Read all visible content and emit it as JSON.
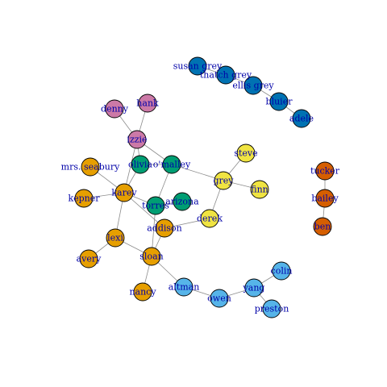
{
  "graph": {
    "groups": {
      "pink": "#cc79a7",
      "green": "#009e73",
      "orange": "#e69f00",
      "yellow": "#f0e442",
      "skyblue": "#56b4e9",
      "blue": "#0072b2",
      "vermillion": "#d55e00"
    },
    "nodes": [
      {
        "id": "susan grey",
        "group": "blue"
      },
      {
        "id": "thatch grey",
        "group": "blue"
      },
      {
        "id": "ellis grey",
        "group": "blue"
      },
      {
        "id": "bluier",
        "group": "blue"
      },
      {
        "id": "adele",
        "group": "blue"
      },
      {
        "id": "denny",
        "group": "pink"
      },
      {
        "id": "hank",
        "group": "pink"
      },
      {
        "id": "izzie",
        "group": "pink"
      },
      {
        "id": "olivia",
        "group": "green"
      },
      {
        "id": "o'malley",
        "group": "green"
      },
      {
        "id": "torres",
        "group": "green"
      },
      {
        "id": "arizona",
        "group": "green"
      },
      {
        "id": "mrs. seabury",
        "group": "orange"
      },
      {
        "id": "karev",
        "group": "orange"
      },
      {
        "id": "kepner",
        "group": "orange"
      },
      {
        "id": "addison",
        "group": "orange"
      },
      {
        "id": "lexi",
        "group": "orange"
      },
      {
        "id": "avery",
        "group": "orange"
      },
      {
        "id": "sloan",
        "group": "orange"
      },
      {
        "id": "nancy",
        "group": "orange"
      },
      {
        "id": "steve",
        "group": "yellow"
      },
      {
        "id": "grey",
        "group": "yellow"
      },
      {
        "id": "finn",
        "group": "yellow"
      },
      {
        "id": "derek",
        "group": "yellow"
      },
      {
        "id": "altman",
        "group": "skyblue"
      },
      {
        "id": "owen",
        "group": "skyblue"
      },
      {
        "id": "yang",
        "group": "skyblue"
      },
      {
        "id": "colin",
        "group": "skyblue"
      },
      {
        "id": "preston",
        "group": "skyblue"
      },
      {
        "id": "tucker",
        "group": "vermillion"
      },
      {
        "id": "bailey",
        "group": "vermillion"
      },
      {
        "id": "ben",
        "group": "vermillion"
      }
    ],
    "edges": [
      [
        "susan grey",
        "thatch grey"
      ],
      [
        "thatch grey",
        "ellis grey"
      ],
      [
        "ellis grey",
        "bluier"
      ],
      [
        "bluier",
        "adele"
      ],
      [
        "denny",
        "izzie"
      ],
      [
        "hank",
        "izzie"
      ],
      [
        "izzie",
        "olivia"
      ],
      [
        "izzie",
        "o'malley"
      ],
      [
        "izzie",
        "karev"
      ],
      [
        "olivia",
        "karev"
      ],
      [
        "olivia",
        "o'malley"
      ],
      [
        "o'malley",
        "torres"
      ],
      [
        "o'malley",
        "grey"
      ],
      [
        "mrs. seabury",
        "karev"
      ],
      [
        "kepner",
        "karev"
      ],
      [
        "karev",
        "torres"
      ],
      [
        "karev",
        "lexi"
      ],
      [
        "karev",
        "addison"
      ],
      [
        "torres",
        "arizona"
      ],
      [
        "torres",
        "sloan"
      ],
      [
        "addison",
        "sloan"
      ],
      [
        "addison",
        "derek"
      ],
      [
        "lexi",
        "sloan"
      ],
      [
        "lexi",
        "avery"
      ],
      [
        "sloan",
        "nancy"
      ],
      [
        "sloan",
        "altman"
      ],
      [
        "steve",
        "grey"
      ],
      [
        "grey",
        "finn"
      ],
      [
        "grey",
        "derek"
      ],
      [
        "altman",
        "owen"
      ],
      [
        "owen",
        "yang"
      ],
      [
        "yang",
        "colin"
      ],
      [
        "yang",
        "preston"
      ],
      [
        "tucker",
        "bailey"
      ],
      [
        "bailey",
        "ben"
      ]
    ]
  }
}
